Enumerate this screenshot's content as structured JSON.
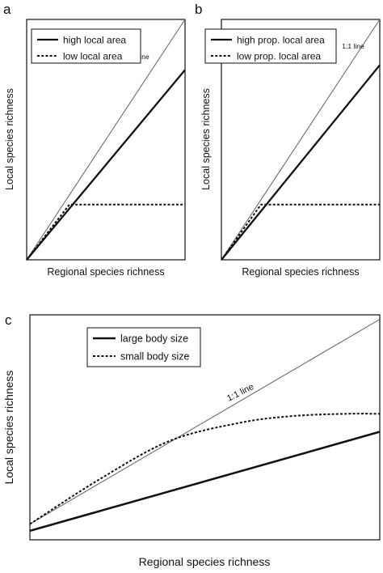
{
  "chart_data": [
    {
      "panel": "a",
      "type": "line",
      "xlabel": "Regional species richness",
      "ylabel": "Local species richness",
      "xlim": [
        0,
        1
      ],
      "ylim": [
        0,
        1
      ],
      "legend": "top-left",
      "grid": false,
      "series": [
        {
          "name": "high local area",
          "style": "solid",
          "x": [
            0,
            1
          ],
          "y": [
            0,
            0.79
          ]
        },
        {
          "name": "low local area",
          "style": "dotted",
          "x": [
            0,
            0.27,
            1
          ],
          "y": [
            0,
            0.23,
            0.23
          ]
        }
      ],
      "reference_line": {
        "label": "1:1 line",
        "x": [
          0,
          1
        ],
        "y": [
          0,
          1
        ]
      }
    },
    {
      "panel": "b",
      "type": "line",
      "xlabel": "Regional species richness",
      "ylabel": "Local species richness",
      "xlim": [
        0,
        1
      ],
      "ylim": [
        0,
        1
      ],
      "legend": "top-left",
      "grid": false,
      "series": [
        {
          "name": "high prop. local area",
          "style": "solid",
          "x": [
            0,
            1
          ],
          "y": [
            0,
            0.81
          ]
        },
        {
          "name": "low prop. local area",
          "style": "dotted",
          "x": [
            0,
            0.25,
            1
          ],
          "y": [
            0,
            0.23,
            0.23
          ]
        }
      ],
      "reference_line": {
        "label": "1:1 line",
        "x": [
          0,
          1
        ],
        "y": [
          0,
          1
        ]
      }
    },
    {
      "panel": "c",
      "type": "line",
      "xlabel": "Regional species richness",
      "ylabel": "Local species richness",
      "xlim": [
        0,
        1
      ],
      "ylim": [
        0,
        1
      ],
      "legend": "top-left",
      "grid": false,
      "series": [
        {
          "name": "large body size",
          "style": "solid",
          "x": [
            0,
            1
          ],
          "y": [
            0.04,
            0.48
          ]
        },
        {
          "name": "small body size",
          "style": "dotted",
          "x": [
            0,
            0.2,
            0.4,
            0.6,
            0.75,
            0.9,
            1
          ],
          "y": [
            0.07,
            0.27,
            0.44,
            0.52,
            0.55,
            0.56,
            0.56
          ]
        }
      ],
      "reference_line": {
        "label": "1:1 line",
        "x": [
          0,
          1
        ],
        "y": [
          0.07,
          0.98
        ]
      }
    }
  ],
  "colors": {
    "ink": "#111111",
    "reference_line": "#6b6b6b",
    "background": "#ffffff"
  }
}
